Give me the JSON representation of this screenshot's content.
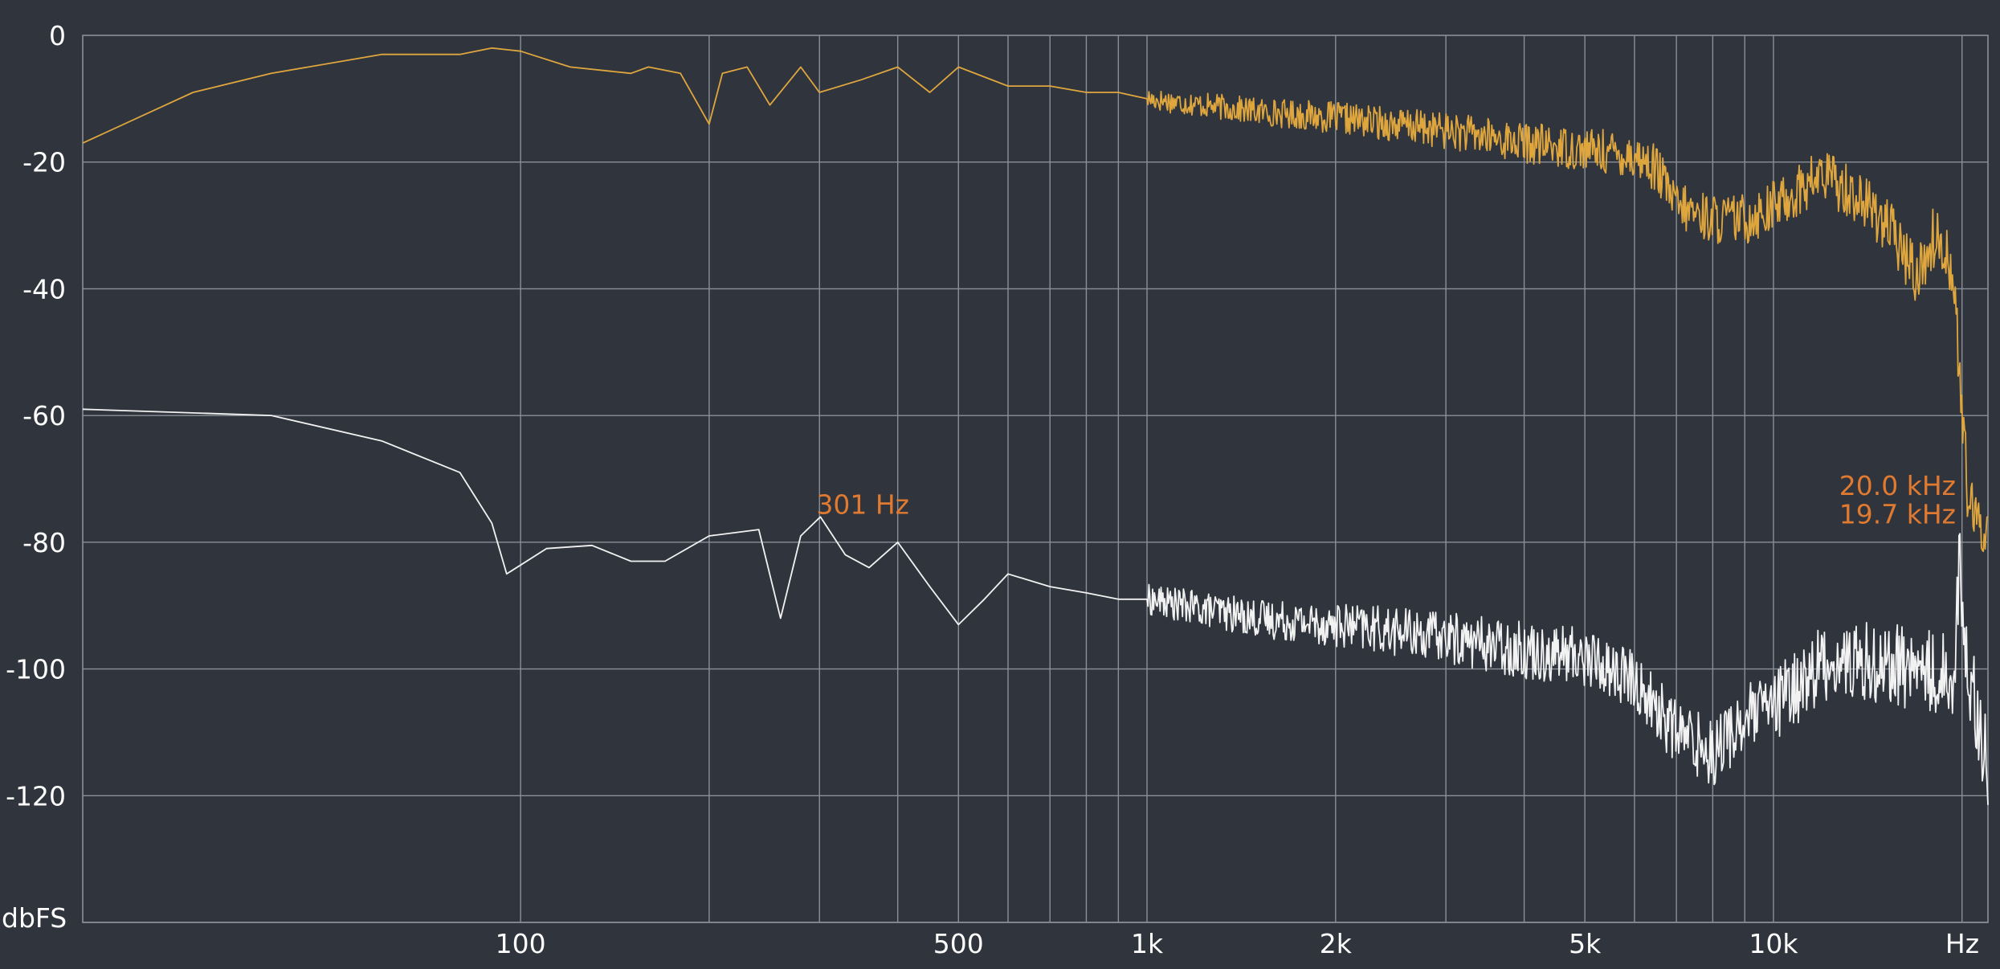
{
  "chart_data": {
    "type": "line",
    "x_scale": "log",
    "xlim": [
      20,
      22000
    ],
    "ylim": [
      -140,
      0
    ],
    "grid": true,
    "ylabel": "dbFS",
    "x_unit_label": "Hz",
    "x_tick_labels": [
      {
        "value": 100,
        "label": "100"
      },
      {
        "value": 500,
        "label": "500"
      },
      {
        "value": 1000,
        "label": "1k"
      },
      {
        "value": 2000,
        "label": "2k"
      },
      {
        "value": 5000,
        "label": "5k"
      },
      {
        "value": 10000,
        "label": "10k"
      }
    ],
    "x_grid_values": [
      100,
      200,
      300,
      400,
      500,
      600,
      700,
      800,
      900,
      1000,
      2000,
      3000,
      4000,
      5000,
      6000,
      7000,
      8000,
      9000,
      10000,
      20000
    ],
    "y_ticks": [
      0,
      -20,
      -40,
      -60,
      -80,
      -100,
      -120
    ],
    "y_tick_labels": [
      "0",
      "-20",
      "-40",
      "-60",
      "-80",
      "-100",
      "-120"
    ],
    "colors": {
      "background": "#30353d",
      "grid": "#8a8f98",
      "series_top": "#e0a63e",
      "series_bottom": "#f2f2f2",
      "marker_text": "#e07a30"
    },
    "series": [
      {
        "color": "#e0a63e",
        "noise": 5,
        "points": [
          [
            20,
            -17
          ],
          [
            30,
            -9
          ],
          [
            40,
            -6
          ],
          [
            60,
            -3
          ],
          [
            80,
            -3
          ],
          [
            90,
            -2
          ],
          [
            100,
            -2.5
          ],
          [
            120,
            -5
          ],
          [
            150,
            -6
          ],
          [
            160,
            -5
          ],
          [
            180,
            -6
          ],
          [
            200,
            -14
          ],
          [
            210,
            -6
          ],
          [
            230,
            -5
          ],
          [
            250,
            -11
          ],
          [
            280,
            -5
          ],
          [
            300,
            -9
          ],
          [
            350,
            -7
          ],
          [
            400,
            -5
          ],
          [
            450,
            -9
          ],
          [
            500,
            -5
          ],
          [
            600,
            -8
          ],
          [
            700,
            -8
          ],
          [
            800,
            -9
          ],
          [
            900,
            -9
          ],
          [
            1000,
            -10
          ],
          [
            1500,
            -12
          ],
          [
            2000,
            -13
          ],
          [
            3000,
            -15
          ],
          [
            4000,
            -17
          ],
          [
            5000,
            -18
          ],
          [
            6000,
            -19
          ],
          [
            6500,
            -21
          ],
          [
            7000,
            -27
          ],
          [
            8000,
            -29
          ],
          [
            9000,
            -29
          ],
          [
            10000,
            -27
          ],
          [
            12000,
            -22
          ],
          [
            13000,
            -24
          ],
          [
            15000,
            -29
          ],
          [
            16000,
            -34
          ],
          [
            17000,
            -38
          ],
          [
            18000,
            -32
          ],
          [
            19000,
            -34
          ],
          [
            19500,
            -42
          ],
          [
            20000,
            -60
          ],
          [
            20500,
            -74
          ],
          [
            21000,
            -77
          ],
          [
            22000,
            -78
          ]
        ]
      },
      {
        "color": "#f2f2f2",
        "noise": 7,
        "points": [
          [
            20,
            -59
          ],
          [
            40,
            -60
          ],
          [
            60,
            -64
          ],
          [
            80,
            -69
          ],
          [
            90,
            -77
          ],
          [
            95,
            -85
          ],
          [
            110,
            -81
          ],
          [
            130,
            -80.5
          ],
          [
            150,
            -83
          ],
          [
            170,
            -83
          ],
          [
            200,
            -79
          ],
          [
            240,
            -78
          ],
          [
            260,
            -92
          ],
          [
            280,
            -79
          ],
          [
            301,
            -76
          ],
          [
            330,
            -82
          ],
          [
            360,
            -84
          ],
          [
            400,
            -80
          ],
          [
            450,
            -87
          ],
          [
            500,
            -93
          ],
          [
            550,
            -89
          ],
          [
            600,
            -85
          ],
          [
            700,
            -87
          ],
          [
            800,
            -88
          ],
          [
            900,
            -89
          ],
          [
            1000,
            -89
          ],
          [
            1500,
            -92
          ],
          [
            2000,
            -93
          ],
          [
            3000,
            -95
          ],
          [
            4000,
            -97
          ],
          [
            5000,
            -98
          ],
          [
            6000,
            -102
          ],
          [
            7000,
            -110
          ],
          [
            8000,
            -113
          ],
          [
            9000,
            -108
          ],
          [
            10000,
            -106
          ],
          [
            12000,
            -99
          ],
          [
            15000,
            -99
          ],
          [
            17000,
            -100
          ],
          [
            18500,
            -101
          ],
          [
            19500,
            -100
          ],
          [
            19800,
            -82
          ],
          [
            20200,
            -98
          ],
          [
            21000,
            -105
          ],
          [
            22000,
            -116
          ]
        ]
      }
    ],
    "annotations": [
      {
        "text": "301 Hz",
        "x": 301,
        "y": -74
      },
      {
        "text": "20.0  kHz",
        "x": 20000,
        "y": -71
      },
      {
        "text": "19.7  kHz",
        "x": 20000,
        "y": -75.5
      }
    ]
  }
}
